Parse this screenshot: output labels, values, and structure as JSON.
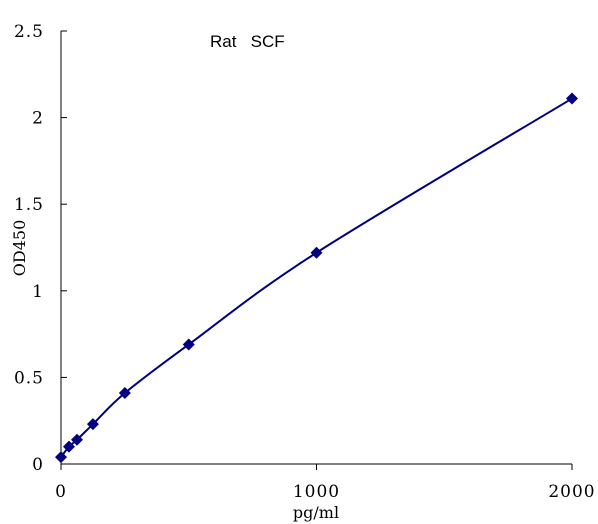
{
  "chart_data": {
    "type": "scatter",
    "title": "Rat   SCF",
    "xlabel": "pg/ml",
    "ylabel": "OD450",
    "xlim": [
      0,
      2000
    ],
    "ylim": [
      0,
      2.5
    ],
    "x_ticks": [
      0,
      1000,
      2000
    ],
    "x_tick_labels": [
      "0",
      "1000",
      "2000"
    ],
    "y_ticks": [
      0,
      0.5,
      1,
      1.5,
      2,
      2.5
    ],
    "y_tick_labels": [
      "0",
      "0.5",
      "1",
      "1.5",
      "2",
      "2.5"
    ],
    "grid": false,
    "series": [
      {
        "marker": "diamond",
        "color": "#000080",
        "fit_line": true,
        "x": [
          0,
          31.25,
          62.5,
          125,
          250,
          500,
          1000,
          2000
        ],
        "y": [
          0.04,
          0.1,
          0.14,
          0.23,
          0.41,
          0.69,
          1.22,
          2.11
        ]
      }
    ]
  }
}
